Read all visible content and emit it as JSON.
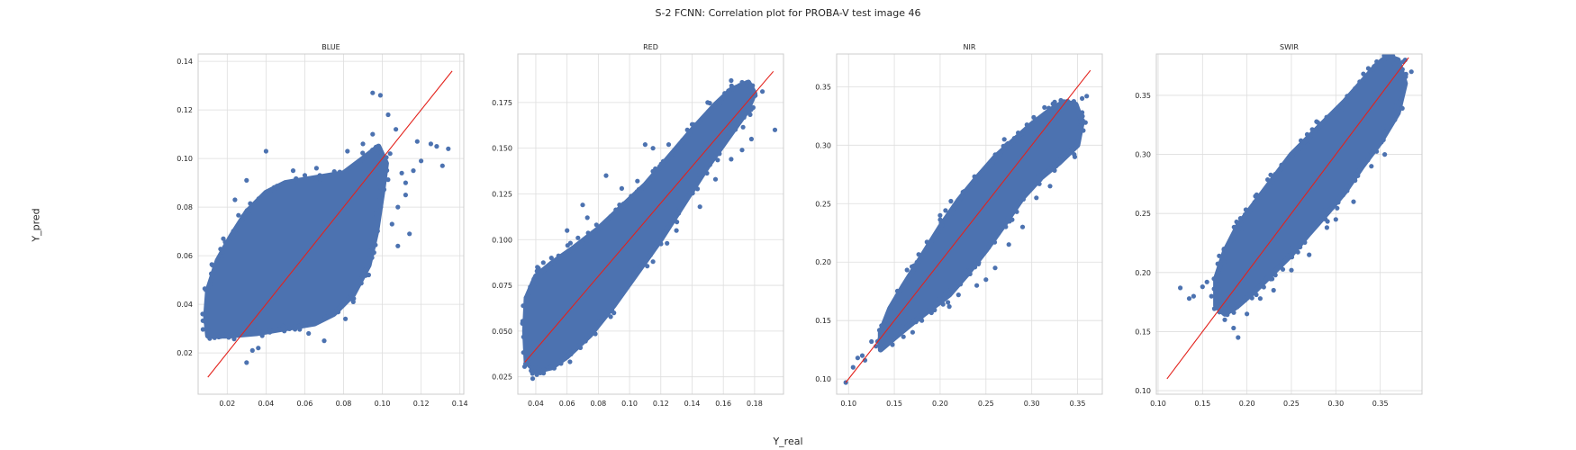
{
  "figure": {
    "suptitle": "S-2 FCNN: Correlation plot for PROBA-V test image 46",
    "xlabel": "Y_real",
    "ylabel": "Y_pred"
  },
  "colors": {
    "points": "#4c72b0",
    "line": "#e3221c",
    "grid": "#dedede",
    "frame": "#cccccc"
  },
  "chart_data": [
    {
      "type": "scatter",
      "title": "BLUE",
      "xlim": [
        0.005,
        0.142
      ],
      "ylim": [
        0.003,
        0.143
      ],
      "xticks": [
        0.02,
        0.04,
        0.06,
        0.08,
        0.1,
        0.12,
        0.14
      ],
      "xtick_labels": [
        "0.02",
        "0.04",
        "0.06",
        "0.08",
        "0.10",
        "0.12",
        "0.14"
      ],
      "yticks": [
        0.02,
        0.04,
        0.06,
        0.08,
        0.1,
        0.12,
        0.14
      ],
      "ytick_labels": [
        "0.02",
        "0.04",
        "0.06",
        "0.08",
        "0.10",
        "0.12",
        "0.14"
      ],
      "identity_line": [
        0.01,
        0.136
      ],
      "cloud": {
        "outline": [
          [
            0.01,
            0.027
          ],
          [
            0.02,
            0.027
          ],
          [
            0.035,
            0.028
          ],
          [
            0.05,
            0.03
          ],
          [
            0.065,
            0.032
          ],
          [
            0.075,
            0.036
          ],
          [
            0.085,
            0.044
          ],
          [
            0.093,
            0.056
          ],
          [
            0.097,
            0.07
          ],
          [
            0.1,
            0.086
          ],
          [
            0.102,
            0.098
          ],
          [
            0.098,
            0.105
          ],
          [
            0.09,
            0.1
          ],
          [
            0.08,
            0.094
          ],
          [
            0.065,
            0.092
          ],
          [
            0.05,
            0.09
          ],
          [
            0.04,
            0.086
          ],
          [
            0.03,
            0.078
          ],
          [
            0.022,
            0.068
          ],
          [
            0.015,
            0.058
          ],
          [
            0.01,
            0.046
          ],
          [
            0.009,
            0.035
          ]
        ],
        "outliers": [
          [
            0.095,
            0.127
          ],
          [
            0.099,
            0.126
          ],
          [
            0.103,
            0.118
          ],
          [
            0.107,
            0.112
          ],
          [
            0.118,
            0.107
          ],
          [
            0.125,
            0.106
          ],
          [
            0.128,
            0.105
          ],
          [
            0.134,
            0.104
          ],
          [
            0.131,
            0.097
          ],
          [
            0.12,
            0.099
          ],
          [
            0.11,
            0.094
          ],
          [
            0.112,
            0.085
          ],
          [
            0.108,
            0.08
          ],
          [
            0.105,
            0.073
          ],
          [
            0.114,
            0.069
          ],
          [
            0.108,
            0.064
          ],
          [
            0.112,
            0.09
          ],
          [
            0.095,
            0.11
          ],
          [
            0.09,
            0.106
          ],
          [
            0.082,
            0.103
          ],
          [
            0.066,
            0.096
          ],
          [
            0.054,
            0.095
          ],
          [
            0.04,
            0.103
          ],
          [
            0.03,
            0.091
          ],
          [
            0.024,
            0.083
          ],
          [
            0.018,
            0.067
          ],
          [
            0.012,
            0.05
          ],
          [
            0.03,
            0.016
          ],
          [
            0.033,
            0.021
          ],
          [
            0.036,
            0.022
          ],
          [
            0.057,
            0.031
          ],
          [
            0.07,
            0.025
          ],
          [
            0.081,
            0.034
          ],
          [
            0.062,
            0.028
          ],
          [
            0.085,
            0.041
          ],
          [
            0.104,
            0.102
          ],
          [
            0.116,
            0.095
          ]
        ]
      }
    },
    {
      "type": "scatter",
      "title": "RED",
      "xlim": [
        0.0285,
        0.1985
      ],
      "ylim": [
        0.0155,
        0.2015
      ],
      "xticks": [
        0.04,
        0.06,
        0.08,
        0.1,
        0.12,
        0.14,
        0.16,
        0.18
      ],
      "xtick_labels": [
        "0.04",
        "0.06",
        "0.08",
        "0.10",
        "0.12",
        "0.14",
        "0.16",
        "0.18"
      ],
      "yticks": [
        0.025,
        0.05,
        0.075,
        0.1,
        0.125,
        0.15,
        0.175
      ],
      "ytick_labels": [
        "0.025",
        "0.050",
        "0.075",
        "0.100",
        "0.125",
        "0.150",
        "0.175"
      ],
      "identity_line": [
        0.033,
        0.192
      ],
      "cloud": {
        "outline": [
          [
            0.034,
            0.033
          ],
          [
            0.04,
            0.028
          ],
          [
            0.05,
            0.03
          ],
          [
            0.06,
            0.036
          ],
          [
            0.075,
            0.048
          ],
          [
            0.09,
            0.064
          ],
          [
            0.105,
            0.082
          ],
          [
            0.12,
            0.1
          ],
          [
            0.135,
            0.12
          ],
          [
            0.15,
            0.14
          ],
          [
            0.165,
            0.158
          ],
          [
            0.175,
            0.17
          ],
          [
            0.18,
            0.18
          ],
          [
            0.176,
            0.186
          ],
          [
            0.165,
            0.182
          ],
          [
            0.155,
            0.174
          ],
          [
            0.14,
            0.16
          ],
          [
            0.125,
            0.145
          ],
          [
            0.11,
            0.13
          ],
          [
            0.095,
            0.118
          ],
          [
            0.08,
            0.106
          ],
          [
            0.065,
            0.096
          ],
          [
            0.05,
            0.087
          ],
          [
            0.04,
            0.08
          ],
          [
            0.034,
            0.068
          ],
          [
            0.033,
            0.05
          ]
        ],
        "outliers": [
          [
            0.038,
            0.024
          ],
          [
            0.045,
            0.027
          ],
          [
            0.036,
            0.043
          ],
          [
            0.041,
            0.085
          ],
          [
            0.05,
            0.09
          ],
          [
            0.06,
            0.105
          ],
          [
            0.07,
            0.119
          ],
          [
            0.073,
            0.112
          ],
          [
            0.085,
            0.135
          ],
          [
            0.095,
            0.128
          ],
          [
            0.105,
            0.132
          ],
          [
            0.11,
            0.152
          ],
          [
            0.115,
            0.15
          ],
          [
            0.125,
            0.152
          ],
          [
            0.14,
            0.163
          ],
          [
            0.15,
            0.175
          ],
          [
            0.165,
            0.187
          ],
          [
            0.172,
            0.186
          ],
          [
            0.185,
            0.181
          ],
          [
            0.193,
            0.16
          ],
          [
            0.178,
            0.155
          ],
          [
            0.172,
            0.149
          ],
          [
            0.165,
            0.144
          ],
          [
            0.155,
            0.133
          ],
          [
            0.145,
            0.118
          ],
          [
            0.13,
            0.105
          ],
          [
            0.115,
            0.088
          ],
          [
            0.095,
            0.07
          ],
          [
            0.08,
            0.055
          ],
          [
            0.07,
            0.045
          ],
          [
            0.09,
            0.06
          ],
          [
            0.124,
            0.098
          ]
        ]
      }
    },
    {
      "type": "scatter",
      "title": "NIR",
      "xlim": [
        0.087,
        0.377
      ],
      "ylim": [
        0.087,
        0.378
      ],
      "xticks": [
        0.1,
        0.15,
        0.2,
        0.25,
        0.3,
        0.35
      ],
      "xtick_labels": [
        "0.10",
        "0.15",
        "0.20",
        "0.25",
        "0.30",
        "0.35"
      ],
      "yticks": [
        0.1,
        0.15,
        0.2,
        0.25,
        0.3,
        0.35
      ],
      "ytick_labels": [
        "0.10",
        "0.15",
        "0.20",
        "0.25",
        "0.30",
        "0.35"
      ],
      "identity_line": [
        0.097,
        0.364
      ],
      "cloud": {
        "outline": [
          [
            0.135,
            0.125
          ],
          [
            0.15,
            0.135
          ],
          [
            0.17,
            0.148
          ],
          [
            0.19,
            0.16
          ],
          [
            0.21,
            0.172
          ],
          [
            0.23,
            0.19
          ],
          [
            0.25,
            0.21
          ],
          [
            0.27,
            0.232
          ],
          [
            0.29,
            0.255
          ],
          [
            0.31,
            0.272
          ],
          [
            0.33,
            0.285
          ],
          [
            0.35,
            0.3
          ],
          [
            0.355,
            0.32
          ],
          [
            0.348,
            0.335
          ],
          [
            0.335,
            0.337
          ],
          [
            0.32,
            0.33
          ],
          [
            0.3,
            0.318
          ],
          [
            0.28,
            0.304
          ],
          [
            0.26,
            0.29
          ],
          [
            0.24,
            0.272
          ],
          [
            0.22,
            0.253
          ],
          [
            0.2,
            0.23
          ],
          [
            0.18,
            0.205
          ],
          [
            0.16,
            0.18
          ],
          [
            0.145,
            0.16
          ],
          [
            0.135,
            0.14
          ]
        ]
      },
      "outliers": [
        [
          0.097,
          0.097
        ],
        [
          0.105,
          0.11
        ],
        [
          0.11,
          0.118
        ],
        [
          0.115,
          0.12
        ],
        [
          0.118,
          0.116
        ],
        [
          0.125,
          0.132
        ],
        [
          0.13,
          0.128
        ],
        [
          0.14,
          0.15
        ],
        [
          0.16,
          0.148
        ],
        [
          0.17,
          0.14
        ],
        [
          0.18,
          0.15
        ],
        [
          0.195,
          0.166
        ],
        [
          0.21,
          0.162
        ],
        [
          0.22,
          0.172
        ],
        [
          0.24,
          0.18
        ],
        [
          0.25,
          0.185
        ],
        [
          0.26,
          0.195
        ],
        [
          0.275,
          0.215
        ],
        [
          0.29,
          0.23
        ],
        [
          0.305,
          0.255
        ],
        [
          0.32,
          0.265
        ],
        [
          0.34,
          0.295
        ],
        [
          0.347,
          0.29
        ],
        [
          0.355,
          0.34
        ],
        [
          0.35,
          0.33
        ],
        [
          0.36,
          0.342
        ],
        [
          0.325,
          0.337
        ],
        [
          0.33,
          0.33
        ],
        [
          0.27,
          0.305
        ],
        [
          0.2,
          0.24
        ]
      ]
    },
    {
      "type": "scatter",
      "title": "SWIR",
      "xlim": [
        0.098,
        0.397
      ],
      "ylim": [
        0.097,
        0.385
      ],
      "xticks": [
        0.1,
        0.15,
        0.2,
        0.25,
        0.3,
        0.35
      ],
      "xtick_labels": [
        "0.10",
        "0.15",
        "0.20",
        "0.25",
        "0.30",
        "0.35"
      ],
      "yticks": [
        0.1,
        0.15,
        0.2,
        0.25,
        0.3,
        0.35
      ],
      "ytick_labels": [
        "0.10",
        "0.15",
        "0.20",
        "0.25",
        "0.30",
        "0.35"
      ],
      "identity_line": [
        0.11,
        0.382
      ],
      "cloud": {
        "outline": [
          [
            0.165,
            0.172
          ],
          [
            0.175,
            0.165
          ],
          [
            0.19,
            0.172
          ],
          [
            0.21,
            0.185
          ],
          [
            0.23,
            0.2
          ],
          [
            0.25,
            0.215
          ],
          [
            0.27,
            0.233
          ],
          [
            0.29,
            0.25
          ],
          [
            0.31,
            0.268
          ],
          [
            0.33,
            0.29
          ],
          [
            0.35,
            0.31
          ],
          [
            0.37,
            0.335
          ],
          [
            0.378,
            0.36
          ],
          [
            0.37,
            0.38
          ],
          [
            0.358,
            0.383
          ],
          [
            0.345,
            0.375
          ],
          [
            0.33,
            0.362
          ],
          [
            0.31,
            0.345
          ],
          [
            0.29,
            0.33
          ],
          [
            0.27,
            0.315
          ],
          [
            0.25,
            0.3
          ],
          [
            0.23,
            0.28
          ],
          [
            0.21,
            0.26
          ],
          [
            0.19,
            0.24
          ],
          [
            0.175,
            0.218
          ],
          [
            0.165,
            0.195
          ]
        ]
      },
      "outliers": [
        [
          0.125,
          0.187
        ],
        [
          0.135,
          0.178
        ],
        [
          0.14,
          0.18
        ],
        [
          0.15,
          0.188
        ],
        [
          0.16,
          0.18
        ],
        [
          0.155,
          0.192
        ],
        [
          0.168,
          0.2
        ],
        [
          0.175,
          0.16
        ],
        [
          0.185,
          0.153
        ],
        [
          0.19,
          0.145
        ],
        [
          0.2,
          0.165
        ],
        [
          0.215,
          0.178
        ],
        [
          0.23,
          0.185
        ],
        [
          0.25,
          0.202
        ],
        [
          0.27,
          0.215
        ],
        [
          0.29,
          0.238
        ],
        [
          0.3,
          0.245
        ],
        [
          0.32,
          0.26
        ],
        [
          0.34,
          0.29
        ],
        [
          0.355,
          0.3
        ],
        [
          0.368,
          0.345
        ],
        [
          0.372,
          0.362
        ],
        [
          0.385,
          0.37
        ],
        [
          0.362,
          0.383
        ],
        [
          0.378,
          0.38
        ],
        [
          0.375,
          0.372
        ]
      ]
    }
  ]
}
